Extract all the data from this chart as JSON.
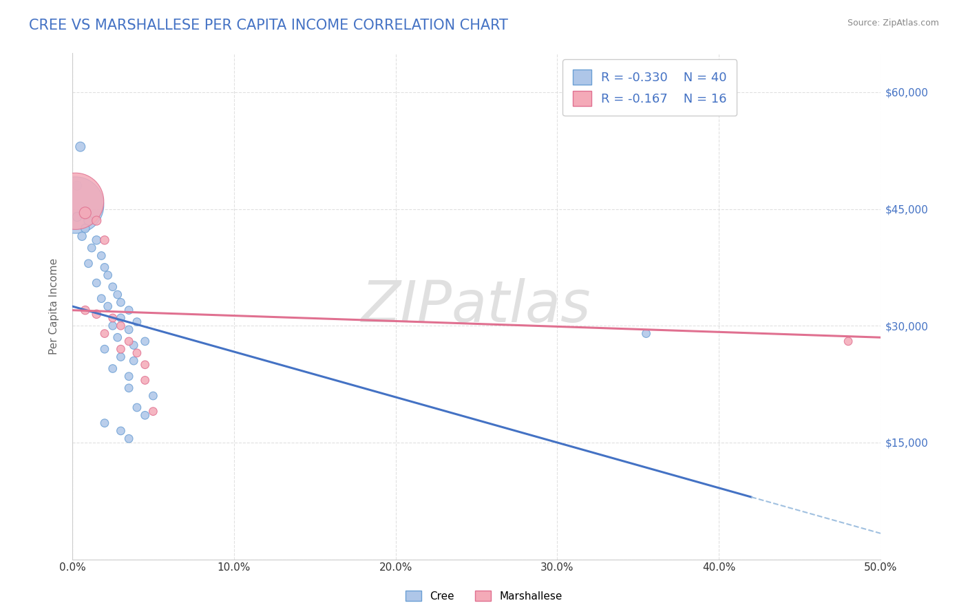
{
  "title": "CREE VS MARSHALLESE PER CAPITA INCOME CORRELATION CHART",
  "source": "Source: ZipAtlas.com",
  "ylabel": "Per Capita Income",
  "xlim": [
    0.0,
    0.5
  ],
  "ylim": [
    0,
    65000
  ],
  "yticks": [
    0,
    15000,
    30000,
    45000,
    60000
  ],
  "ytick_labels": [
    "",
    "$15,000",
    "$30,000",
    "$45,000",
    "$60,000"
  ],
  "xticks": [
    0.0,
    0.1,
    0.2,
    0.3,
    0.4,
    0.5
  ],
  "xtick_labels": [
    "0.0%",
    "10.0%",
    "20.0%",
    "30.0%",
    "40.0%",
    "50.0%"
  ],
  "title_color": "#4472c4",
  "title_fontsize": 15,
  "axis_label_color": "#666666",
  "tick_label_color_right": "#4472c4",
  "cree_color": "#aec6e8",
  "cree_edge_color": "#6b9fd4",
  "marshallese_color": "#f4aab8",
  "marshallese_edge_color": "#e07090",
  "trend_cree_color": "#4472c4",
  "trend_marshallese_color": "#e07090",
  "trend_ext_color": "#a0c0e0",
  "R_cree": -0.33,
  "N_cree": 40,
  "R_marshallese": -0.167,
  "N_marshallese": 16,
  "cree_points": [
    [
      0.005,
      53000
    ],
    [
      0.003,
      48000
    ],
    [
      0.002,
      45500
    ],
    [
      0.003,
      44000
    ],
    [
      0.01,
      43500
    ],
    [
      0.008,
      42500
    ],
    [
      0.006,
      41500
    ],
    [
      0.015,
      41000
    ],
    [
      0.012,
      40000
    ],
    [
      0.018,
      39000
    ],
    [
      0.01,
      38000
    ],
    [
      0.02,
      37500
    ],
    [
      0.022,
      36500
    ],
    [
      0.015,
      35500
    ],
    [
      0.025,
      35000
    ],
    [
      0.028,
      34000
    ],
    [
      0.018,
      33500
    ],
    [
      0.03,
      33000
    ],
    [
      0.022,
      32500
    ],
    [
      0.035,
      32000
    ],
    [
      0.03,
      31000
    ],
    [
      0.04,
      30500
    ],
    [
      0.025,
      30000
    ],
    [
      0.035,
      29500
    ],
    [
      0.028,
      28500
    ],
    [
      0.045,
      28000
    ],
    [
      0.038,
      27500
    ],
    [
      0.02,
      27000
    ],
    [
      0.03,
      26000
    ],
    [
      0.038,
      25500
    ],
    [
      0.025,
      24500
    ],
    [
      0.035,
      23500
    ],
    [
      0.035,
      22000
    ],
    [
      0.05,
      21000
    ],
    [
      0.04,
      19500
    ],
    [
      0.045,
      18500
    ],
    [
      0.02,
      17500
    ],
    [
      0.03,
      16500
    ],
    [
      0.035,
      15500
    ],
    [
      0.355,
      29000
    ]
  ],
  "marshallese_points": [
    [
      0.002,
      46000
    ],
    [
      0.008,
      44500
    ],
    [
      0.015,
      43500
    ],
    [
      0.02,
      41000
    ],
    [
      0.008,
      32000
    ],
    [
      0.015,
      31500
    ],
    [
      0.025,
      31000
    ],
    [
      0.03,
      30000
    ],
    [
      0.02,
      29000
    ],
    [
      0.035,
      28000
    ],
    [
      0.03,
      27000
    ],
    [
      0.04,
      26500
    ],
    [
      0.045,
      25000
    ],
    [
      0.045,
      23000
    ],
    [
      0.05,
      19000
    ],
    [
      0.48,
      28000
    ]
  ],
  "cree_sizes_raw": [
    20,
    18,
    700,
    18,
    18,
    16,
    16,
    16,
    14,
    14,
    14,
    14,
    14,
    14,
    14,
    14,
    14,
    14,
    14,
    14,
    14,
    14,
    14,
    14,
    14,
    14,
    14,
    14,
    14,
    14,
    14,
    14,
    14,
    14,
    14,
    14,
    14,
    14,
    14,
    14
  ],
  "marshallese_sizes_raw": [
    700,
    30,
    18,
    16,
    16,
    16,
    14,
    14,
    14,
    14,
    14,
    14,
    14,
    14,
    14,
    14
  ],
  "trend_cree_x0": 0.0,
  "trend_cree_y0": 32500,
  "trend_cree_x1": 0.42,
  "trend_cree_y1": 8000,
  "trend_marsh_x0": 0.0,
  "trend_marsh_y0": 32000,
  "trend_marsh_x1": 0.5,
  "trend_marsh_y1": 28500,
  "trend_ext_x0": 0.42,
  "trend_ext_x1": 0.5,
  "watermark": "ZIPatlas",
  "watermark_color": "#e0e0e0",
  "background_color": "#ffffff",
  "grid_color": "#dddddd"
}
